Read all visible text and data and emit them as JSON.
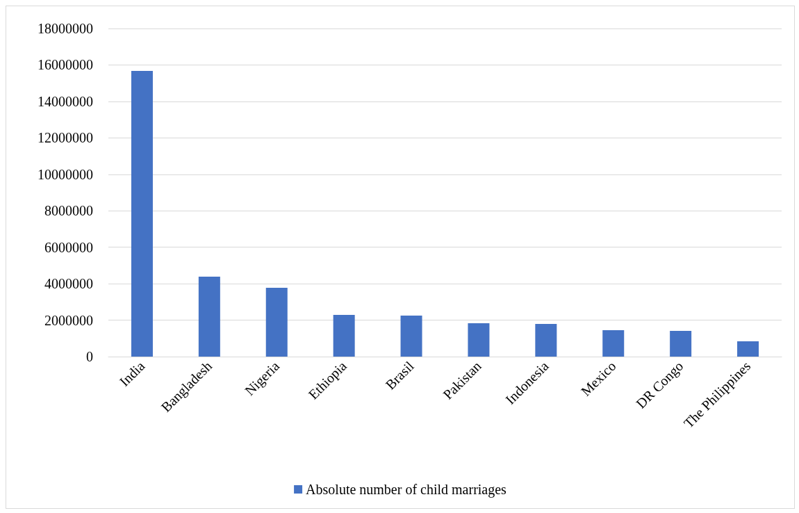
{
  "chart_data": {
    "type": "bar",
    "categories": [
      "India",
      "Bangladesh",
      "Nigeria",
      "Ethiopia",
      "Brasil",
      "Pakistan",
      "Indonesia",
      "Mexico",
      "DR Congo",
      "The Philippines"
    ],
    "series": [
      {
        "name": "Absolute number of child marriages",
        "color": "#4472c4",
        "values": [
          15670000,
          4390000,
          3780000,
          2290000,
          2250000,
          1830000,
          1790000,
          1450000,
          1410000,
          840000
        ]
      }
    ],
    "ylim": [
      0,
      18000000
    ],
    "yticks": [
      0,
      2000000,
      4000000,
      6000000,
      8000000,
      10000000,
      12000000,
      14000000,
      16000000,
      18000000
    ],
    "grid": "y",
    "legend": "bottom"
  }
}
